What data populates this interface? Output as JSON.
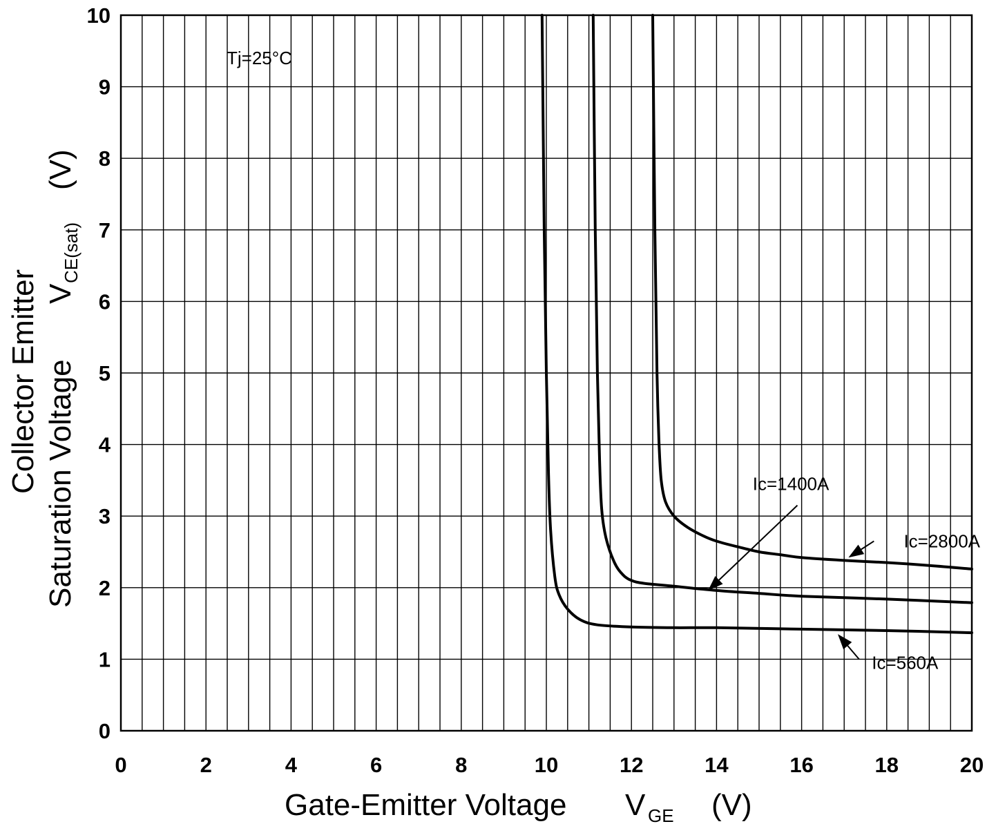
{
  "chart_data": {
    "type": "line",
    "title": "",
    "xlabel": "Gate-Emitter Voltage",
    "xlabel_symbol": "V",
    "xlabel_subscript": "GE",
    "xlabel_unit": "(V)",
    "ylabel_line1": "Collector Emitter",
    "ylabel_line2": "Saturation Voltage",
    "ylabel_symbol": "V",
    "ylabel_subscript": "CE(sat)",
    "ylabel_unit": "(V)",
    "xlim": [
      0,
      20
    ],
    "ylim": [
      0,
      10
    ],
    "xticks": [
      0,
      2,
      4,
      6,
      8,
      10,
      12,
      14,
      16,
      18,
      20
    ],
    "xtick_labels": [
      "0",
      "2",
      "4",
      "6",
      "8",
      "10",
      "12",
      "14",
      "16",
      "18",
      "20"
    ],
    "yticks": [
      0,
      1,
      2,
      3,
      4,
      5,
      6,
      7,
      8,
      9,
      10
    ],
    "ytick_labels": [
      "0",
      "1",
      "2",
      "3",
      "4",
      "5",
      "6",
      "7",
      "8",
      "9",
      "10"
    ],
    "grid": true,
    "condition_label": "Tj=25°C",
    "series": [
      {
        "name": "Ic=560A",
        "x": [
          9.9,
          9.95,
          10.0,
          10.05,
          10.1,
          10.2,
          10.3,
          10.5,
          10.8,
          11.2,
          12.0,
          13.0,
          14.0,
          16.0,
          18.0,
          20.0
        ],
        "y": [
          10.0,
          7.0,
          5.0,
          3.6,
          2.8,
          2.15,
          1.9,
          1.7,
          1.55,
          1.48,
          1.45,
          1.44,
          1.44,
          1.42,
          1.4,
          1.37
        ]
      },
      {
        "name": "Ic=1400A",
        "x": [
          11.1,
          11.15,
          11.2,
          11.25,
          11.3,
          11.4,
          11.6,
          11.8,
          12.0,
          12.3,
          13.0,
          14.0,
          15.0,
          16.0,
          18.0,
          20.0
        ],
        "y": [
          10.0,
          7.0,
          5.0,
          3.8,
          3.1,
          2.7,
          2.35,
          2.18,
          2.1,
          2.06,
          2.02,
          1.96,
          1.92,
          1.88,
          1.84,
          1.79
        ]
      },
      {
        "name": "Ic=2800A",
        "x": [
          12.5,
          12.55,
          12.6,
          12.65,
          12.7,
          12.8,
          13.0,
          13.3,
          13.7,
          14.0,
          14.5,
          15.0,
          15.5,
          16.0,
          17.0,
          18.0,
          19.0,
          20.0
        ],
        "y": [
          10.0,
          7.0,
          5.0,
          4.0,
          3.5,
          3.2,
          3.0,
          2.85,
          2.72,
          2.65,
          2.57,
          2.5,
          2.46,
          2.42,
          2.38,
          2.35,
          2.31,
          2.26
        ]
      }
    ],
    "annotations": [
      {
        "text": "Ic=1400A",
        "x": 14.85,
        "y": 3.45,
        "arrow_from": [
          15.9,
          3.15
        ],
        "arrow_to": [
          13.8,
          1.96
        ]
      },
      {
        "text": "Ic=2800A",
        "x": 18.4,
        "y": 2.65,
        "arrow_from": [
          17.7,
          2.65
        ],
        "arrow_to": [
          17.1,
          2.42
        ]
      },
      {
        "text": "Ic=560A",
        "x": 17.65,
        "y": 0.95,
        "arrow_from": [
          17.35,
          1.0
        ],
        "arrow_to": [
          16.85,
          1.35
        ]
      }
    ]
  }
}
